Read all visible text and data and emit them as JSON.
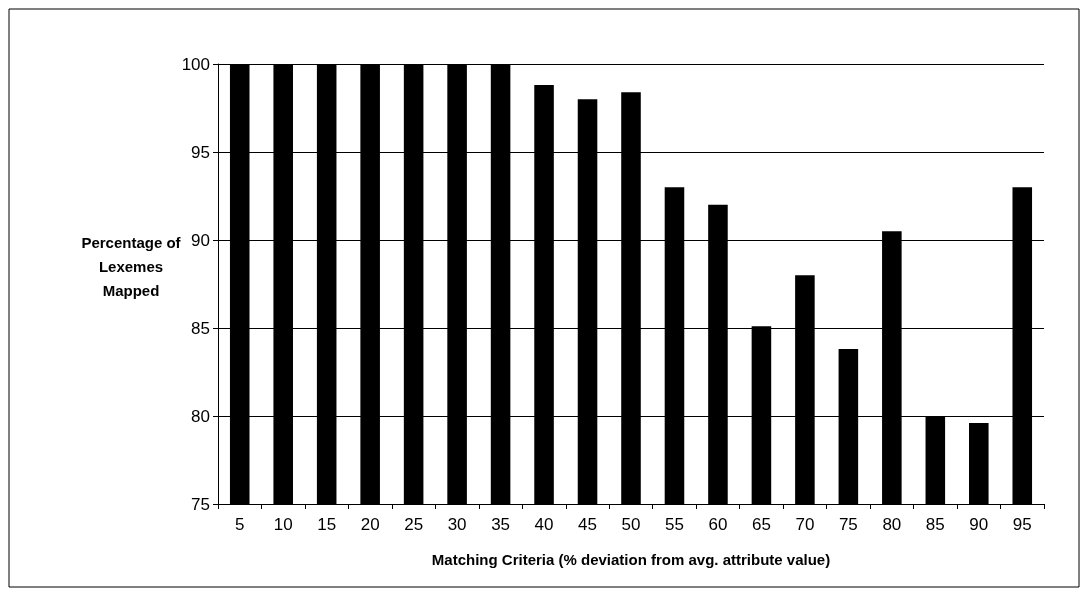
{
  "chart_data": {
    "type": "bar",
    "xlabel": "Matching Criteria (% deviation from avg. attribute value)",
    "ylabel": "Percentage of Lexemes Mapped",
    "categories": [
      "5",
      "10",
      "15",
      "20",
      "25",
      "30",
      "35",
      "40",
      "45",
      "50",
      "55",
      "60",
      "65",
      "70",
      "75",
      "80",
      "85",
      "90",
      "95"
    ],
    "values": [
      100,
      100,
      100,
      100,
      100,
      100,
      100,
      98.8,
      98.0,
      98.4,
      93.0,
      92.0,
      85.1,
      88.0,
      83.8,
      90.5,
      80.0,
      79.6,
      93.0
    ],
    "color": "#000000",
    "ylim": [
      75,
      100
    ],
    "yticks": [
      75,
      80,
      85,
      90,
      95,
      100
    ],
    "grid": "y"
  }
}
